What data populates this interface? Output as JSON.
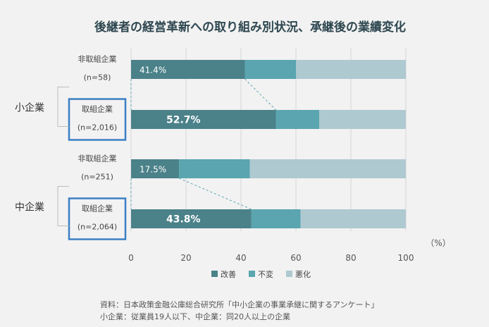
{
  "chart_data": {
    "type": "bar",
    "orientation": "horizontal",
    "stacked": true,
    "title": "後継者の経営革新への取り組み別状況、承継後の業績変化",
    "unit": "（%）",
    "xlim": [
      0,
      100
    ],
    "xticks": [
      0,
      20,
      40,
      60,
      80,
      100
    ],
    "grid": true,
    "legend_position": "bottom",
    "groups": [
      {
        "name": "小企業"
      },
      {
        "name": "中企業"
      }
    ],
    "rows": [
      {
        "group": 0,
        "label": "非取組企業",
        "n": "(n=58)",
        "highlight": false
      },
      {
        "group": 0,
        "label": "取組企業",
        "n": "(n=2,016)",
        "highlight": true
      },
      {
        "group": 1,
        "label": "非取組企業",
        "n": "(n=251)",
        "highlight": false
      },
      {
        "group": 1,
        "label": "取組企業",
        "n": "(n=2,064)",
        "highlight": true
      }
    ],
    "series": [
      {
        "name": "改善",
        "color": "#4b8189",
        "values": [
          41.4,
          52.7,
          17.5,
          43.8
        ],
        "labels": [
          "41.4%",
          "52.7%",
          "17.5%",
          "43.8%"
        ]
      },
      {
        "name": "不変",
        "color": "#5aa5af",
        "values": [
          18.6,
          15.8,
          25.7,
          17.9
        ]
      },
      {
        "name": "悪化",
        "color": "#aec9d0",
        "values": [
          40.0,
          31.5,
          56.8,
          38.3
        ]
      }
    ],
    "source_lines": [
      "資料：日本政策金融公庫総合研究所「中小企業の事業承継に関するアンケート」",
      "小企業：従業員19人以下、中企業：同20人以上の企業"
    ]
  }
}
